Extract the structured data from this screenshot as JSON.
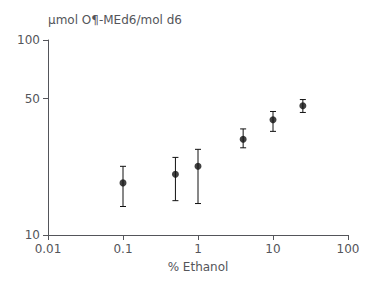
{
  "chart_data": {
    "type": "scatter",
    "x": [
      0.1,
      0.5,
      1.0,
      4.0,
      10.0,
      25.0
    ],
    "values": [
      18.5,
      20.5,
      22.5,
      31.0,
      39.0,
      46.0
    ],
    "yerr_lo": [
      4.5,
      5.5,
      8.0,
      3.0,
      5.0,
      3.5
    ],
    "yerr_hi": [
      4.0,
      4.5,
      5.0,
      4.0,
      4.0,
      3.5
    ],
    "xlabel": "% Ethanol",
    "ylabel": "μmol O¶-MEd6/mol d6",
    "xlim": [
      0.01,
      100
    ],
    "ylim": [
      10,
      100
    ],
    "xticks": [
      0.01,
      0.1,
      1,
      10,
      100
    ],
    "yticks": [
      10,
      50,
      100
    ],
    "log": true,
    "grid": false,
    "color": "#111111",
    "marker": "circle"
  }
}
